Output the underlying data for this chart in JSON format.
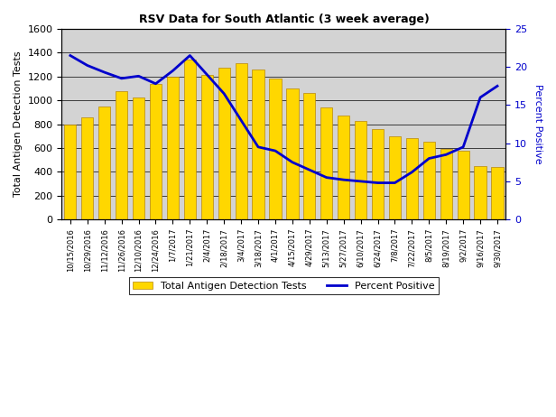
{
  "title": "RSV Data for South Atlantic (3 week average)",
  "ylabel_left": "Total Antigen Detection Tests",
  "ylabel_right": "Percent Positive",
  "bar_color": "#FFD700",
  "bar_edgecolor": "#B8860B",
  "line_color": "#0000CC",
  "background_color": "#FFFFFF",
  "plot_bg_color": "#D3D3D3",
  "ylim_left": [
    0,
    1600
  ],
  "ylim_right": [
    0,
    25
  ],
  "categories": [
    "10/15/2016",
    "10/29/2016",
    "11/12/2016",
    "11/26/2016",
    "12/10/2016",
    "12/24/2016",
    "1/7/2017",
    "1/21/2017",
    "2/4/2017",
    "2/18/2017",
    "3/4/2017",
    "3/18/2017",
    "4/1/2017",
    "4/15/2017",
    "4/29/2017",
    "5/13/2017",
    "5/27/2017",
    "6/10/2017",
    "6/24/2017",
    "7/8/2017",
    "7/22/2017",
    "8/5/2017",
    "8/19/2017",
    "9/2/2017",
    "9/16/2017",
    "9/30/2017"
  ],
  "bar_values": [
    800,
    860,
    945,
    1080,
    1020,
    1140,
    1200,
    1340,
    1210,
    1270,
    1315,
    1260,
    1180,
    1100,
    1060,
    940,
    870,
    830,
    760,
    695,
    680,
    650,
    590,
    580,
    450,
    440
  ],
  "line_values": [
    21.5,
    20.2,
    19.3,
    18.5,
    18.8,
    17.8,
    19.5,
    21.5,
    19.0,
    16.5,
    13.0,
    9.5,
    9.0,
    7.5,
    6.5,
    5.5,
    5.2,
    5.0,
    4.8,
    4.8,
    6.2,
    8.0,
    8.5,
    9.5,
    16.0,
    17.5
  ],
  "yticks_left": [
    0,
    200,
    400,
    600,
    800,
    1000,
    1200,
    1400,
    1600
  ],
  "yticks_right": [
    0,
    5,
    10,
    15,
    20,
    25
  ]
}
